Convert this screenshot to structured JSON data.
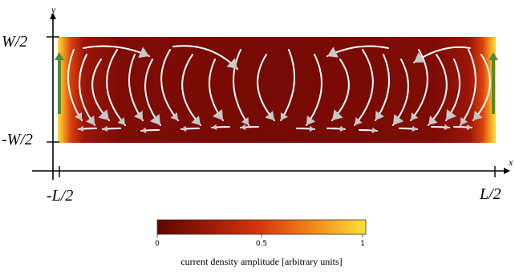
{
  "axes": {
    "x_name": "x",
    "y_name": "y",
    "x_left": "-L/2",
    "x_right": "L/2",
    "y_top": "W/2",
    "y_bottom": "-W/2"
  },
  "colorbar": {
    "ticks": [
      "0",
      "0.5",
      "1"
    ],
    "title": "current density amplitude [arbitrary units]"
  },
  "colors": {
    "cmap_low": "#7a0b05",
    "cmap_mid": "#d2300c",
    "cmap_mid2": "#ee7a12",
    "cmap_high": "#fde03c",
    "arrow_white": "#ffffff",
    "arrow_gray": "#c8c8c8",
    "source_arrow": "#4e8b34"
  }
}
